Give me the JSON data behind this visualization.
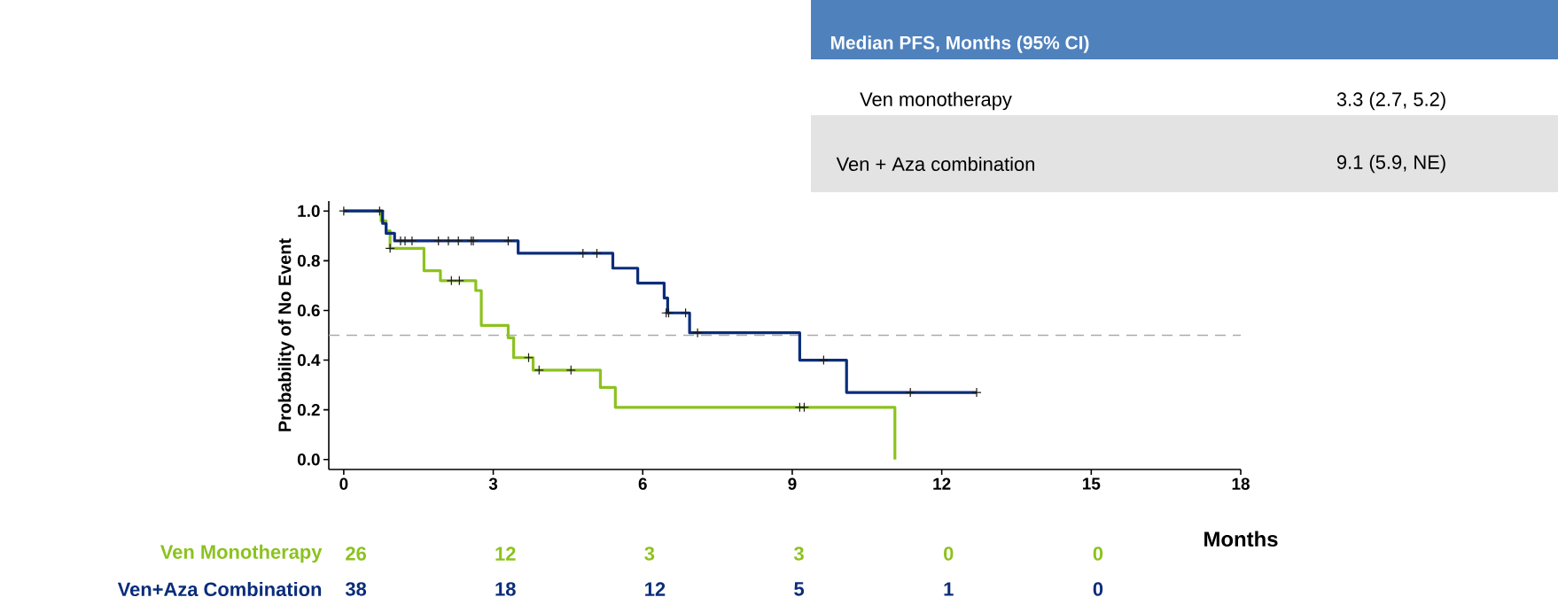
{
  "chart_data": {
    "type": "step",
    "ylabel": "Probability of No Event",
    "xlabel": "Months",
    "xlim": [
      -0.3,
      18
    ],
    "ylim": [
      -0.04,
      1.04
    ],
    "xticks": [
      0,
      3,
      6,
      9,
      12,
      15,
      18
    ],
    "yticks": [
      {
        "value": 0,
        "label": "0.0"
      },
      {
        "value": 0.2,
        "label": "0.2"
      },
      {
        "value": 0.4,
        "label": "0.4"
      },
      {
        "value": 0.6,
        "label": "0.6"
      },
      {
        "value": 0.8,
        "label": "0.8"
      },
      {
        "value": 1,
        "label": "1.0"
      }
    ],
    "legend": false,
    "grid": false,
    "ref_lines": [
      {
        "axis": "y",
        "value": 0.5,
        "color": "#aaaaaa",
        "line_style": "dashed"
      }
    ],
    "series": [
      {
        "name": "Ven Monotherapy",
        "color": "#8cc21f",
        "x": [
          0,
          0.75,
          0.85,
          0.93,
          1.61,
          1.94,
          2.65,
          2.76,
          3.3,
          3.41,
          3.8,
          5.15,
          5.45,
          11.06
        ],
        "values": [
          1.0,
          0.96,
          0.92,
          0.85,
          0.76,
          0.72,
          0.68,
          0.54,
          0.49,
          0.41,
          0.36,
          0.29,
          0.21,
          0.0
        ]
      },
      {
        "name": "Ven+Aza Combination",
        "color": "#0a2d7a",
        "x": [
          0,
          0.78,
          0.85,
          1.02,
          3.5,
          5.4,
          5.9,
          6.43,
          6.5,
          6.94,
          9.15,
          10.09,
          12.7
        ],
        "values": [
          1.0,
          0.95,
          0.91,
          0.88,
          0.83,
          0.77,
          0.71,
          0.65,
          0.59,
          0.51,
          0.4,
          0.27,
          0.27
        ]
      },
      {
        "type": "scatter",
        "marker": "cross",
        "color": "#1a1a1a",
        "x": [
          0.93,
          2.16,
          2.32,
          3.71,
          3.92,
          4.56,
          9.15,
          9.24
        ],
        "values": [
          0.85,
          0.72,
          0.72,
          0.41,
          0.36,
          0.36,
          0.21,
          0.21
        ]
      },
      {
        "type": "scatter",
        "marker": "cross",
        "color": "#1a1a1a",
        "x": [
          0,
          0.72,
          1.14,
          1.23,
          1.37,
          1.9,
          2.1,
          2.3,
          2.56,
          2.6,
          3.3,
          4.8,
          5.08,
          6.47,
          6.52,
          6.86,
          7.1,
          9.63,
          11.37,
          12.7
        ],
        "values": [
          1,
          1,
          0.88,
          0.88,
          0.88,
          0.88,
          0.88,
          0.88,
          0.88,
          0.88,
          0.88,
          0.83,
          0.83,
          0.59,
          0.59,
          0.59,
          0.51,
          0.4,
          0.27,
          0.27
        ]
      }
    ],
    "annotations": [
      "Median PFS, Months (95% CI)",
      "Ven monotherapy",
      "3.3 (2.7, 5.2)",
      "Ven + Aza combination",
      "9.1 (5.9, NE)",
      "26",
      "12",
      "3",
      "3",
      "0",
      "0",
      "38",
      "18",
      "12",
      "5",
      "1",
      "0"
    ]
  }
}
